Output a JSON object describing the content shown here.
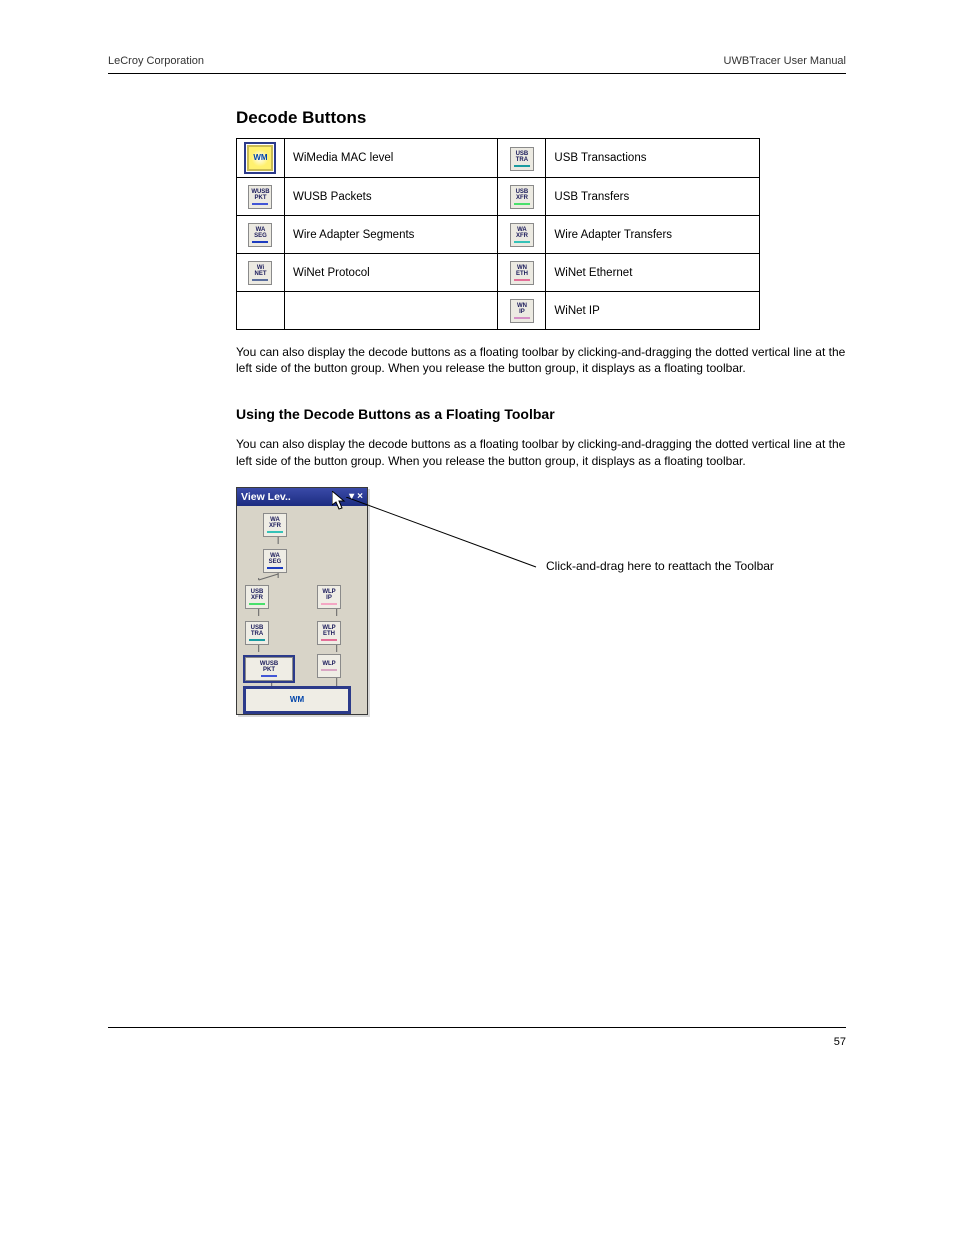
{
  "header": {
    "brand": "LeCroy Corporation",
    "title": "UWBTracer User Manual"
  },
  "section_title": "Decode Buttons",
  "table": {
    "rows": [
      {
        "left_icon": "wm",
        "left_label": "WiMedia MAC level",
        "right_icon": "usbtra",
        "right_label": "USB Transactions"
      },
      {
        "left_icon": "wusbpkt",
        "left_label": "WUSB Packets",
        "right_icon": "usbxfr",
        "right_label": "USB Transfers"
      },
      {
        "left_icon": "waseg",
        "left_label": "Wire Adapter Segments",
        "right_icon": "waxfr",
        "right_label": "Wire Adapter Transfers"
      },
      {
        "left_icon": "winet",
        "left_label": "WiNet Protocol",
        "right_icon": "wneth",
        "right_label": "WiNet Ethernet"
      },
      {
        "left_icon": null,
        "left_label": "",
        "right_icon": "wnip",
        "right_label": "WiNet IP"
      }
    ]
  },
  "para1": "You can also display the decode buttons as a floating toolbar by clicking-and-dragging the dotted vertical line at the left side of the button group. When you release the button group, it displays as a floating toolbar.",
  "heading": "Using the Decode Buttons as a Floating Toolbar",
  "para2": "You can also display the decode buttons as a floating toolbar by clicking-and-dragging the dotted vertical line at the left side of the button group. When you release the button group, it displays as a floating toolbar.",
  "toolbar": {
    "title": "View Lev..",
    "nodes": {
      "waxfr": {
        "label_top": "WA",
        "label_bot": "XFR",
        "bar_color": "#35c2b8"
      },
      "waseg": {
        "label_top": "WA",
        "label_bot": "SEG",
        "bar_color": "#1d3cc0"
      },
      "usbxfr": {
        "label_top": "USB",
        "label_bot": "XFR",
        "bar_color": "#49e06c"
      },
      "wlpip": {
        "label_top": "WLP",
        "label_bot": "IP",
        "bar_color": "#f4a7c4"
      },
      "usbtra": {
        "label_top": "USB",
        "label_bot": "TRA",
        "bar_color": "#1a9ba0"
      },
      "wlpeth": {
        "label_top": "WLP",
        "label_bot": "ETH",
        "bar_color": "#e36f98"
      },
      "wusbpkt": {
        "label_top": "WUSB",
        "label_bot": "PKT",
        "bar_color": "#4256d6"
      },
      "wlp": {
        "label_top": "WLP",
        "label_bot": "",
        "bar_color": "#d9a7c4"
      },
      "wm": {
        "label": "WM"
      }
    }
  },
  "annotation": "Click-and-drag here to reattach the Toolbar",
  "footer": {
    "page": "57"
  },
  "icons": {
    "wm": {
      "top": "",
      "bot": "",
      "bar": "",
      "circle": true
    },
    "wusbpkt": {
      "top": "WUSB",
      "bot": "PKT",
      "bar": "#4256d6"
    },
    "waseg": {
      "top": "WA",
      "bot": "SEG",
      "bar": "#1d3cc0"
    },
    "winet": {
      "top": "Wi",
      "bot": "NET",
      "bar": "#5b6e9c"
    },
    "usbtra": {
      "top": "USB",
      "bot": "TRA",
      "bar": "#1a9ba0"
    },
    "usbxfr": {
      "top": "USB",
      "bot": "XFR",
      "bar": "#49e06c"
    },
    "waxfr": {
      "top": "WA",
      "bot": "XFR",
      "bar": "#35c2b8"
    },
    "wneth": {
      "top": "WN",
      "bot": "ETH",
      "bar": "#e36f98"
    },
    "wnip": {
      "top": "WN",
      "bot": "IP",
      "bar": "#d490c6"
    }
  },
  "colors": {
    "titlebar_grad_top": "#3a4aa8",
    "titlebar_grad_bot": "#1c2c80",
    "panel_bg": "#d8d4c8",
    "selection_outline": "#2b3a8a"
  }
}
